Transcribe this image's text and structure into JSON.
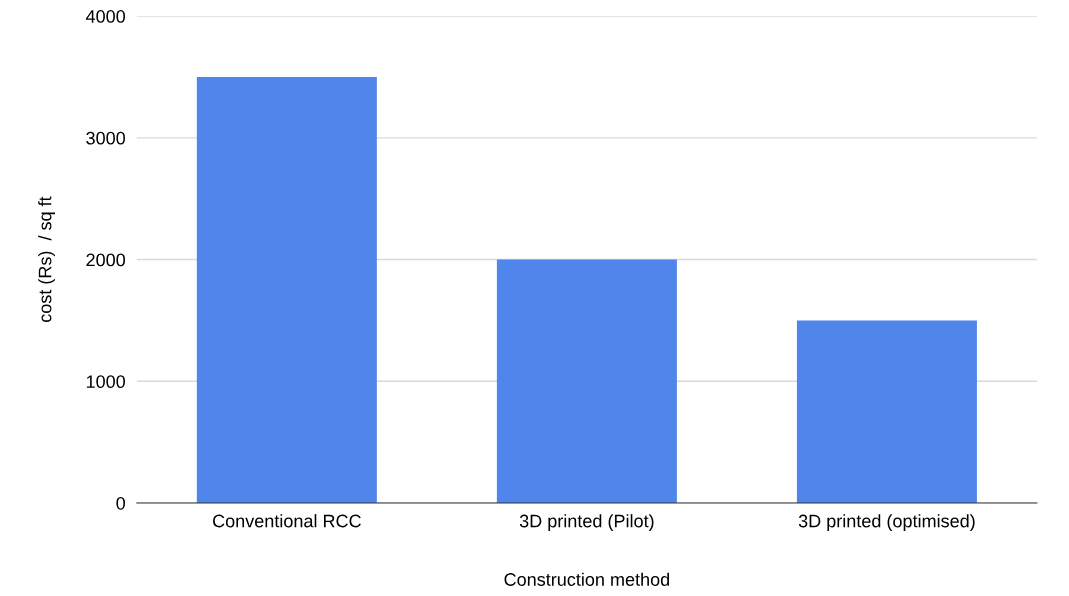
{
  "chart_data": {
    "type": "bar",
    "xlabel": "Construction method",
    "ylabel": "cost (Rs)  / sq ft",
    "categories": [
      "Conventional RCC",
      "3D printed (Pilot)",
      "3D printed (optimised)"
    ],
    "values": [
      3500,
      2000,
      1500
    ],
    "color": "#5085ec",
    "ylim": [
      0,
      4000
    ],
    "yticks": [
      0,
      1000,
      2000,
      3000,
      4000
    ],
    "grid": "y",
    "legend": false
  }
}
